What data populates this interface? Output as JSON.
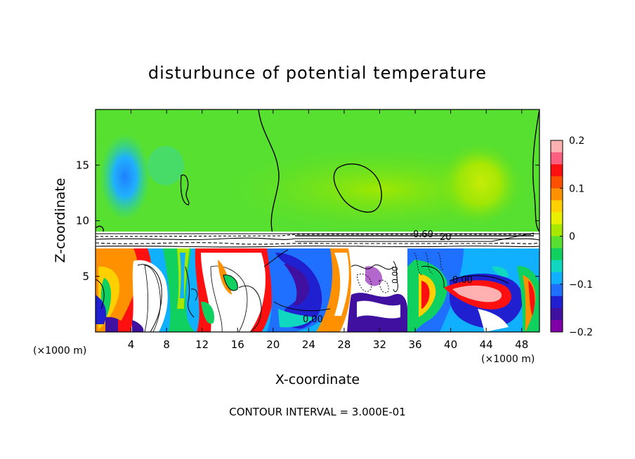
{
  "chart_data": {
    "type": "heatmap",
    "title": "disturbunce of potential temperature",
    "xlabel": "X-coordinate",
    "ylabel": "Z-coordinate",
    "x_unit_left": "(×1000 m)",
    "x_unit_right": "(×1000 m)",
    "xlim": [
      0,
      50
    ],
    "ylim": [
      0,
      20
    ],
    "x_ticks": [
      "4",
      "8",
      "12",
      "16",
      "20",
      "24",
      "28",
      "32",
      "36",
      "40",
      "44",
      "48"
    ],
    "x_tick_values": [
      4,
      8,
      12,
      16,
      20,
      24,
      28,
      32,
      36,
      40,
      44,
      48
    ],
    "y_ticks": [
      "5",
      "10",
      "15"
    ],
    "y_tick_values": [
      5,
      10,
      15
    ],
    "colorbar": {
      "range": [
        -0.2,
        0.2
      ],
      "labels": [
        "0.2",
        "0.1",
        "0",
        "−0.1",
        "−0.2"
      ],
      "label_values": [
        0.2,
        0.1,
        0,
        -0.1,
        -0.2
      ],
      "colors": [
        "#ffb0b0",
        "#ff6080",
        "#ff1010",
        "#ff5000",
        "#ff9000",
        "#ffd000",
        "#e8f000",
        "#a8e800",
        "#58e030",
        "#10d060",
        "#10d8c0",
        "#10b0ff",
        "#2070ff",
        "#2020d0",
        "#4010a0",
        "#8000a8"
      ]
    },
    "contour_labels": [
      "0.60",
      "20",
      "0.00",
      "0.00",
      "0.00"
    ],
    "footer": "CONTOUR INTERVAL = 3.000E-01"
  }
}
